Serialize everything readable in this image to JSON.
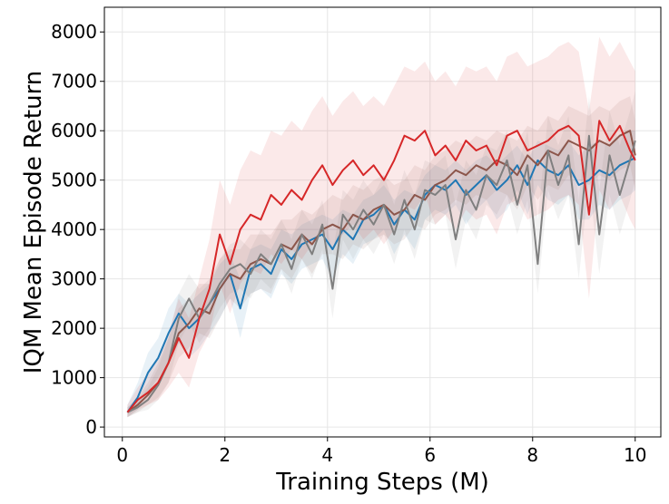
{
  "chart_data": {
    "type": "line",
    "xlabel": "Training Steps (M)",
    "ylabel": "IQM Mean Episode Return",
    "xlim": [
      -0.35,
      10.5
    ],
    "ylim": [
      -200,
      8500
    ],
    "xticks": [
      0,
      2,
      4,
      6,
      8,
      10
    ],
    "yticks": [
      0,
      1000,
      2000,
      3000,
      4000,
      5000,
      6000,
      7000,
      8000
    ],
    "xtick_labels": [
      "0",
      "2",
      "4",
      "6",
      "8",
      "10"
    ],
    "ytick_labels": [
      "0",
      "1000",
      "2000",
      "3000",
      "4000",
      "5000",
      "6000",
      "7000",
      "8000"
    ],
    "grid": true,
    "series": [
      {
        "color": "#1f77b4",
        "x": [
          0.1,
          0.3,
          0.5,
          0.7,
          0.9,
          1.1,
          1.3,
          1.5,
          1.7,
          1.9,
          2.1,
          2.3,
          2.5,
          2.7,
          2.9,
          3.1,
          3.3,
          3.5,
          3.7,
          3.9,
          4.1,
          4.3,
          4.5,
          4.7,
          4.9,
          5.1,
          5.3,
          5.5,
          5.7,
          5.9,
          6.1,
          6.3,
          6.5,
          6.7,
          6.9,
          7.1,
          7.3,
          7.5,
          7.7,
          7.9,
          8.1,
          8.3,
          8.5,
          8.7,
          8.9,
          9.1,
          9.3,
          9.5,
          9.7,
          9.9,
          10.0
        ],
        "values": [
          300,
          600,
          1100,
          1400,
          1900,
          2300,
          2000,
          2200,
          2500,
          2800,
          3100,
          2400,
          3200,
          3300,
          3100,
          3600,
          3400,
          3700,
          3800,
          3900,
          3600,
          4000,
          3800,
          4200,
          4300,
          4500,
          4100,
          4400,
          4200,
          4700,
          4900,
          4800,
          5000,
          4700,
          4900,
          5100,
          4800,
          5000,
          5300,
          4900,
          5400,
          5200,
          5100,
          5300,
          4900,
          5000,
          5200,
          5100,
          5300,
          5400,
          5450
        ],
        "upper": [
          450,
          900,
          1500,
          1800,
          2400,
          2700,
          2500,
          2700,
          2900,
          3300,
          3500,
          3000,
          3600,
          3700,
          3600,
          4000,
          3900,
          4100,
          4200,
          4300,
          4200,
          4400,
          4300,
          4600,
          4700,
          4900,
          4600,
          4800,
          4700,
          5100,
          5300,
          5200,
          5400,
          5200,
          5400,
          5500,
          5300,
          5500,
          5700,
          5400,
          5800,
          5700,
          5600,
          5800,
          5500,
          5700,
          5800,
          5700,
          5900,
          6000,
          6000
        ],
        "lower": [
          200,
          350,
          700,
          1000,
          1300,
          1700,
          1400,
          1600,
          1900,
          2200,
          2600,
          1800,
          2700,
          2800,
          2600,
          3100,
          2900,
          3200,
          3300,
          3400,
          3000,
          3500,
          3300,
          3700,
          3800,
          4000,
          3500,
          3900,
          3600,
          4200,
          4400,
          4300,
          4500,
          4100,
          4400,
          4600,
          4200,
          4400,
          4800,
          4300,
          4900,
          4600,
          4500,
          4700,
          4200,
          4200,
          4500,
          4400,
          4600,
          4700,
          4800
        ]
      },
      {
        "color": "#8c564b",
        "x": [
          0.1,
          0.3,
          0.5,
          0.7,
          0.9,
          1.1,
          1.3,
          1.5,
          1.7,
          1.9,
          2.1,
          2.3,
          2.5,
          2.7,
          2.9,
          3.1,
          3.3,
          3.5,
          3.7,
          3.9,
          4.1,
          4.3,
          4.5,
          4.7,
          4.9,
          5.1,
          5.3,
          5.5,
          5.7,
          5.9,
          6.1,
          6.3,
          6.5,
          6.7,
          6.9,
          7.1,
          7.3,
          7.5,
          7.7,
          7.9,
          8.1,
          8.3,
          8.5,
          8.7,
          8.9,
          9.1,
          9.3,
          9.5,
          9.7,
          9.9,
          10.0
        ],
        "values": [
          300,
          450,
          650,
          900,
          1300,
          1900,
          2100,
          2400,
          2300,
          2800,
          3100,
          3000,
          3300,
          3400,
          3300,
          3700,
          3600,
          3900,
          3700,
          4000,
          4100,
          4000,
          4300,
          4200,
          4400,
          4500,
          4300,
          4400,
          4700,
          4600,
          4900,
          5000,
          5200,
          5100,
          5300,
          5200,
          5400,
          5300,
          5100,
          5500,
          5300,
          5600,
          5500,
          5800,
          5700,
          5600,
          5800,
          5700,
          5900,
          6000,
          5500
        ],
        "upper": [
          400,
          600,
          900,
          1300,
          1800,
          2400,
          2600,
          2900,
          2900,
          3400,
          3600,
          3600,
          3900,
          3900,
          3900,
          4200,
          4200,
          4400,
          4300,
          4500,
          4700,
          4600,
          4900,
          4800,
          5000,
          5100,
          4900,
          5000,
          5300,
          5200,
          5500,
          5600,
          5800,
          5700,
          5900,
          5800,
          6000,
          5900,
          5800,
          6100,
          6000,
          6300,
          6200,
          6500,
          6400,
          6300,
          6500,
          6400,
          6600,
          6700,
          6200
        ],
        "lower": [
          200,
          300,
          450,
          600,
          900,
          1400,
          1600,
          1900,
          1800,
          2200,
          2600,
          2400,
          2700,
          2800,
          2700,
          3200,
          3000,
          3400,
          3100,
          3500,
          3500,
          3400,
          3700,
          3600,
          3800,
          3900,
          3700,
          3800,
          4100,
          4000,
          4300,
          4400,
          4600,
          4500,
          4700,
          4600,
          4800,
          4700,
          4400,
          4900,
          4600,
          4900,
          4800,
          5100,
          5000,
          4900,
          5100,
          5000,
          5200,
          5300,
          4800
        ]
      },
      {
        "color": "#7f7f7f",
        "x": [
          0.1,
          0.3,
          0.5,
          0.7,
          0.9,
          1.1,
          1.3,
          1.5,
          1.7,
          1.9,
          2.1,
          2.3,
          2.5,
          2.7,
          2.9,
          3.1,
          3.3,
          3.5,
          3.7,
          3.9,
          4.1,
          4.3,
          4.5,
          4.7,
          4.9,
          5.1,
          5.3,
          5.5,
          5.7,
          5.9,
          6.1,
          6.3,
          6.5,
          6.7,
          6.9,
          7.1,
          7.3,
          7.5,
          7.7,
          7.9,
          8.1,
          8.3,
          8.5,
          8.7,
          8.9,
          9.1,
          9.3,
          9.5,
          9.7,
          9.9,
          10.0
        ],
        "values": [
          300,
          400,
          550,
          850,
          1300,
          2200,
          2600,
          2200,
          2500,
          2900,
          3200,
          3300,
          3100,
          3500,
          3300,
          3700,
          3200,
          3900,
          3500,
          4100,
          2800,
          4300,
          4000,
          4400,
          4100,
          4500,
          3900,
          4600,
          4000,
          4800,
          4700,
          4900,
          3800,
          4800,
          4400,
          5100,
          4900,
          5400,
          4500,
          5300,
          3300,
          5600,
          4900,
          5500,
          3700,
          5900,
          3900,
          5500,
          4700,
          5400,
          5800
        ],
        "upper": [
          400,
          550,
          800,
          1200,
          1800,
          2700,
          3100,
          2800,
          3000,
          3400,
          3700,
          3800,
          3600,
          4000,
          3800,
          4200,
          3800,
          4400,
          4100,
          4600,
          3500,
          4800,
          4600,
          5000,
          4700,
          5100,
          4500,
          5200,
          4700,
          5400,
          5300,
          5500,
          4500,
          5400,
          5100,
          5700,
          5600,
          6000,
          5200,
          6000,
          4200,
          6300,
          5700,
          6300,
          4600,
          6700,
          4800,
          6400,
          5700,
          6400,
          6800
        ],
        "lower": [
          200,
          300,
          350,
          550,
          900,
          1700,
          2100,
          1700,
          2000,
          2400,
          2700,
          2800,
          2600,
          3000,
          2800,
          3200,
          2700,
          3400,
          3000,
          3600,
          2200,
          3800,
          3400,
          3800,
          3500,
          3900,
          3300,
          4000,
          3400,
          4200,
          4100,
          4300,
          3200,
          4200,
          3800,
          4500,
          4300,
          4700,
          3900,
          4600,
          2700,
          4800,
          4200,
          4700,
          3000,
          5000,
          3100,
          4700,
          3900,
          4600,
          5000
        ]
      },
      {
        "color": "#d62728",
        "x": [
          0.1,
          0.3,
          0.5,
          0.7,
          0.9,
          1.1,
          1.3,
          1.5,
          1.7,
          1.9,
          2.1,
          2.3,
          2.5,
          2.7,
          2.9,
          3.1,
          3.3,
          3.5,
          3.7,
          3.9,
          4.1,
          4.3,
          4.5,
          4.7,
          4.9,
          5.1,
          5.3,
          5.5,
          5.7,
          5.9,
          6.1,
          6.3,
          6.5,
          6.7,
          6.9,
          7.1,
          7.3,
          7.5,
          7.7,
          7.9,
          8.1,
          8.3,
          8.5,
          8.7,
          8.9,
          9.1,
          9.3,
          9.5,
          9.7,
          9.9,
          10.0
        ],
        "values": [
          300,
          550,
          700,
          900,
          1300,
          1800,
          1400,
          2200,
          2800,
          3900,
          3300,
          4000,
          4300,
          4200,
          4700,
          4500,
          4800,
          4600,
          5000,
          5300,
          4900,
          5200,
          5400,
          5100,
          5300,
          5000,
          5400,
          5900,
          5800,
          6000,
          5500,
          5700,
          5400,
          5800,
          5600,
          5700,
          5300,
          5900,
          6000,
          5600,
          5700,
          5800,
          6000,
          6100,
          5900,
          4300,
          6200,
          5800,
          6100,
          5600,
          5400
        ],
        "upper": [
          450,
          800,
          1100,
          1400,
          1900,
          2600,
          2200,
          3000,
          3800,
          5000,
          4500,
          5200,
          5600,
          5500,
          6000,
          5900,
          6200,
          6000,
          6400,
          6700,
          6300,
          6600,
          6800,
          6500,
          6700,
          6500,
          6900,
          7300,
          7200,
          7400,
          7000,
          7200,
          6900,
          7300,
          7200,
          7300,
          7000,
          7500,
          7600,
          7300,
          7400,
          7500,
          7700,
          7800,
          7600,
          6400,
          7900,
          7500,
          7800,
          7400,
          7200
        ],
        "lower": [
          200,
          350,
          450,
          550,
          800,
          1100,
          800,
          1500,
          1900,
          2900,
          2300,
          2900,
          3200,
          3100,
          3500,
          3300,
          3600,
          3400,
          3700,
          4000,
          3600,
          3900,
          4100,
          3800,
          4000,
          3700,
          4000,
          4500,
          4400,
          4700,
          4100,
          4300,
          4000,
          4400,
          4200,
          4300,
          3900,
          4500,
          4600,
          4200,
          4300,
          4400,
          4600,
          4700,
          4500,
          2600,
          4800,
          4400,
          4700,
          4200,
          4000
        ]
      }
    ]
  }
}
